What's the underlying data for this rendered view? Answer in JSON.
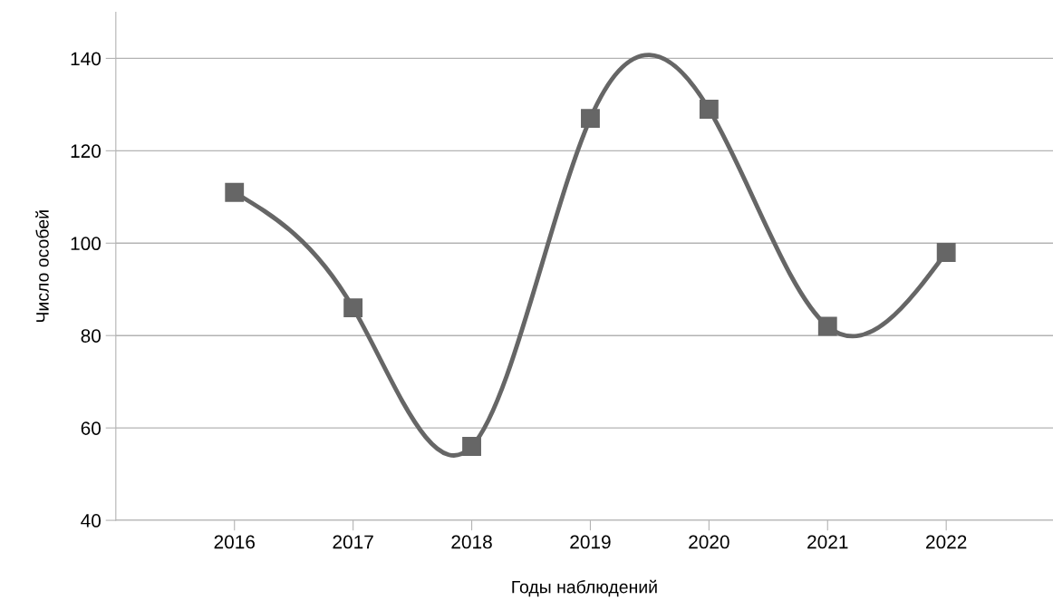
{
  "chart_data": {
    "type": "line",
    "xlabel": "Годы наблюдений",
    "ylabel": "Число особей",
    "categories": [
      "2016",
      "2017",
      "2018",
      "2019",
      "2020",
      "2021",
      "2022"
    ],
    "series": [
      {
        "color": "#666666",
        "values": [
          111,
          86,
          56,
          127,
          129,
          82,
          98
        ]
      }
    ],
    "ylim": [
      40,
      150
    ],
    "yticks": [
      40,
      60,
      80,
      100,
      120,
      140
    ],
    "grid": "y",
    "marker": "square",
    "line_style": "solid"
  }
}
